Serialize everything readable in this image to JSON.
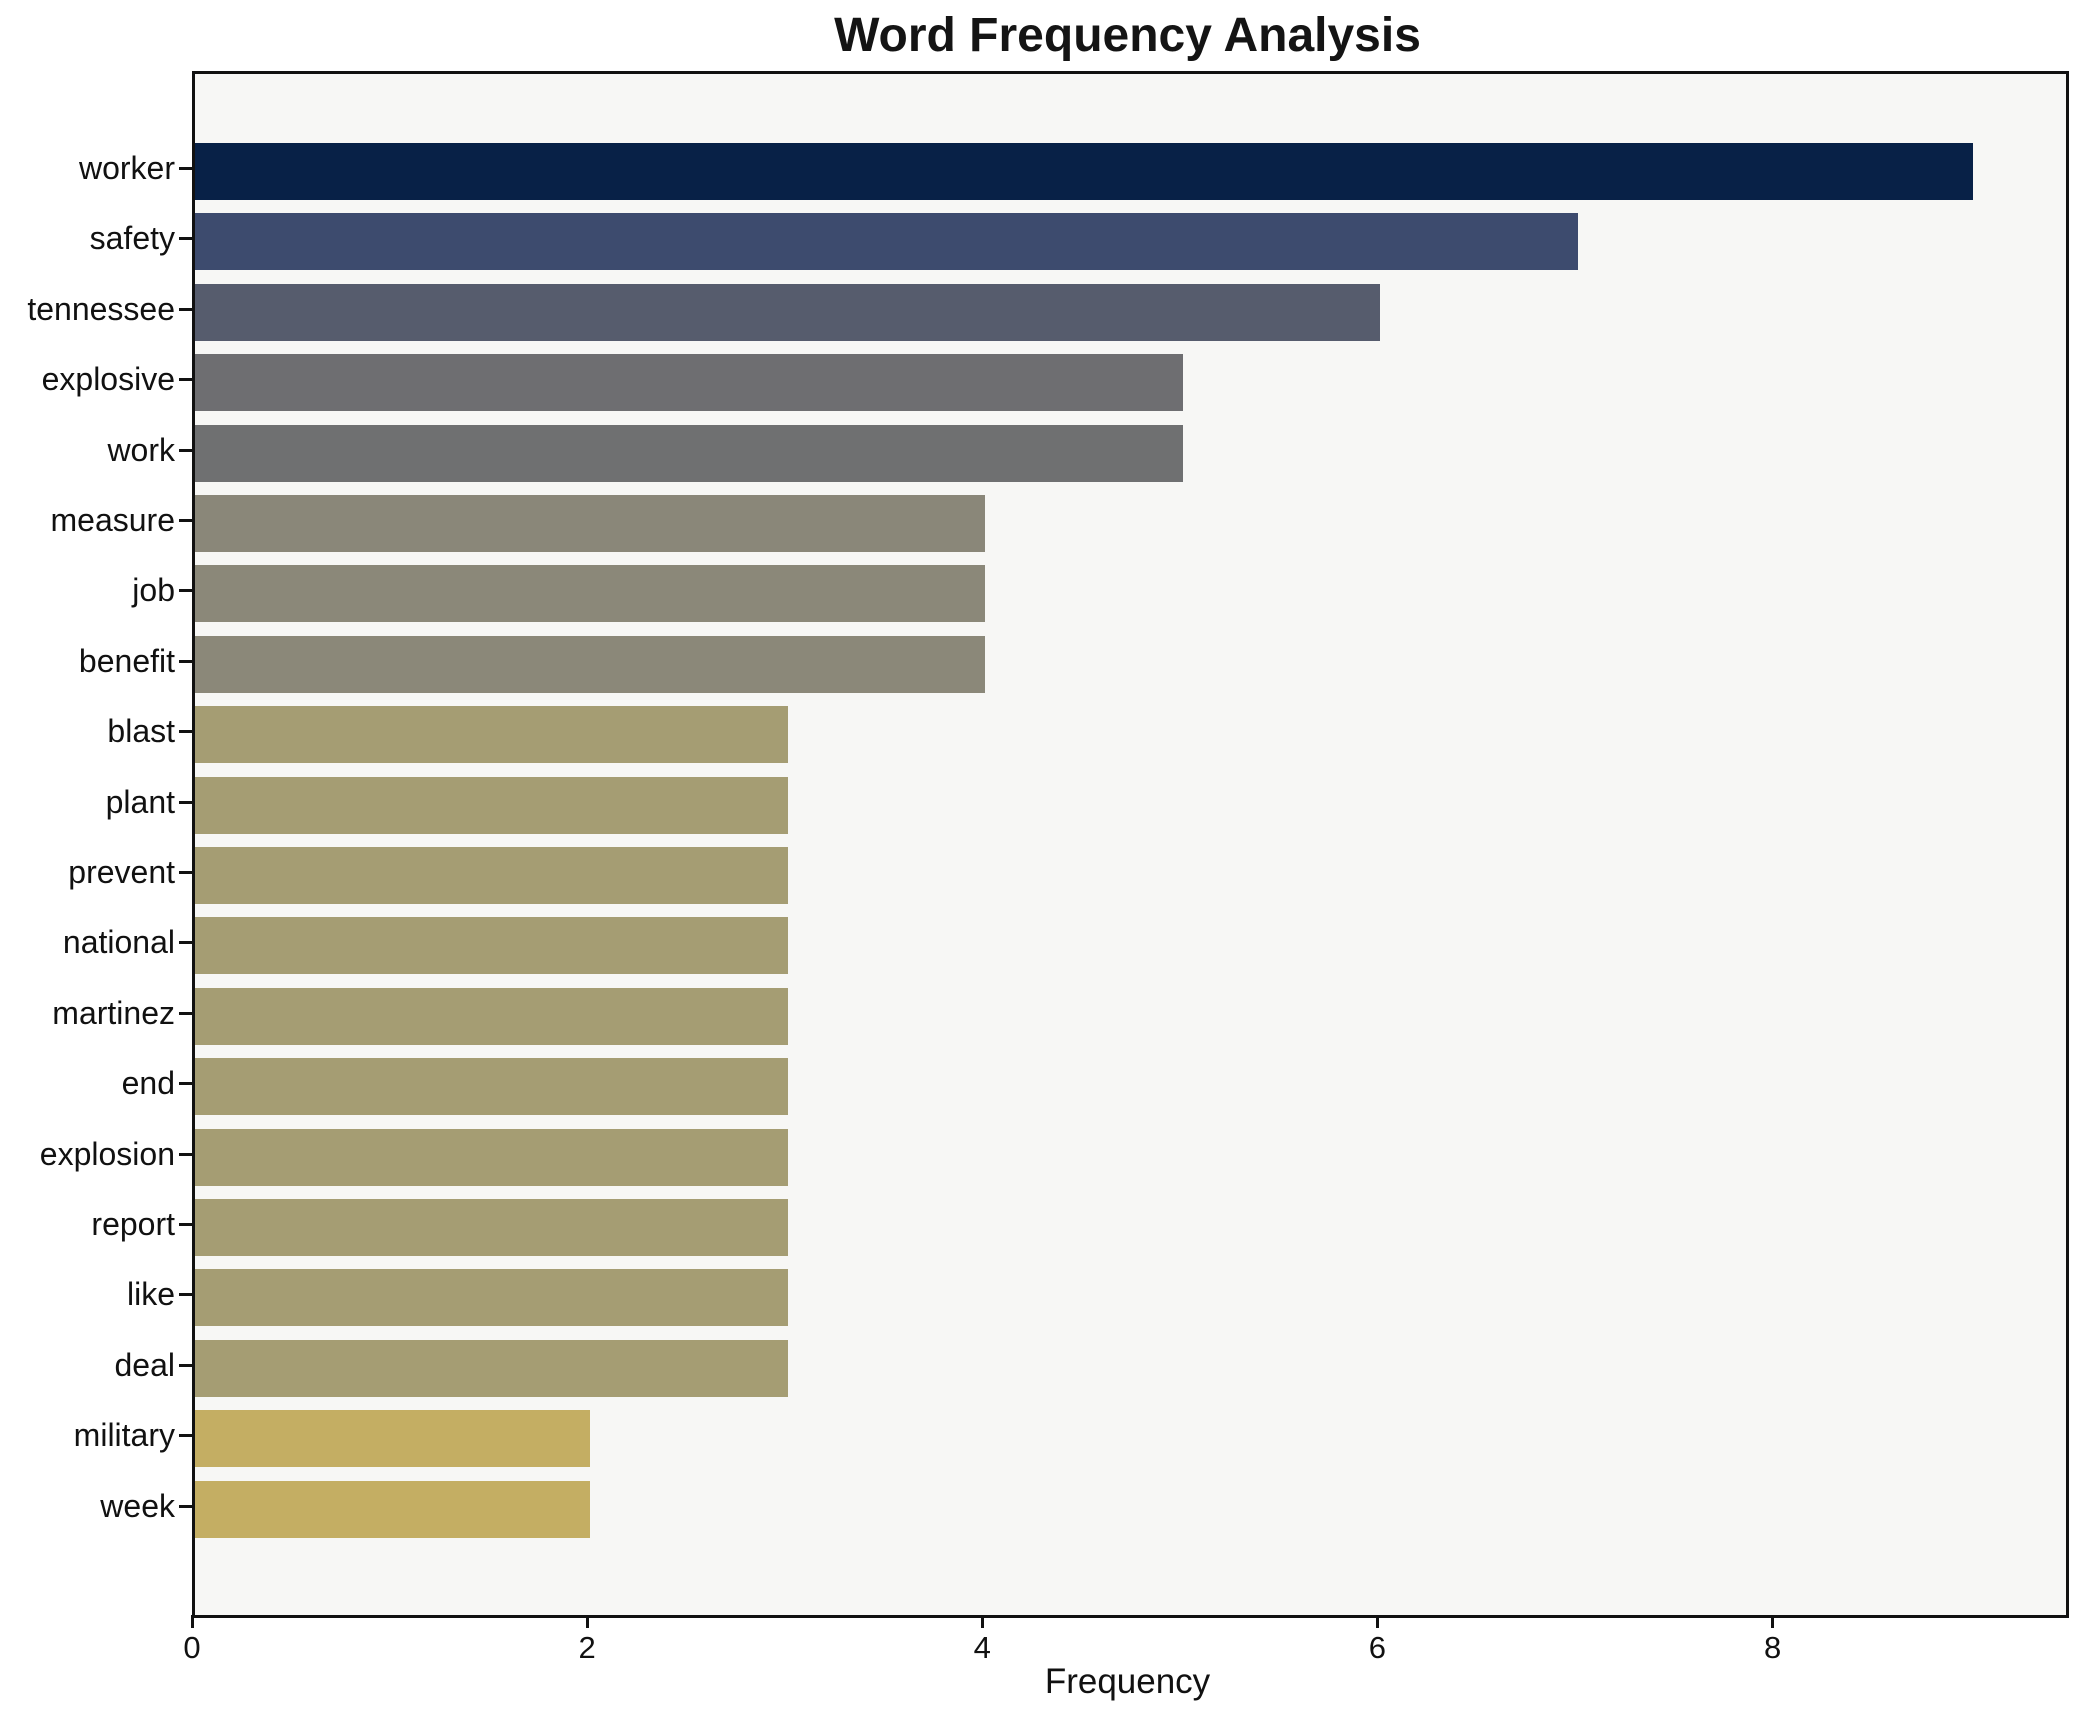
{
  "title": "Word Frequency Analysis",
  "chart_data": {
    "type": "bar",
    "orientation": "horizontal",
    "title": "Word Frequency Analysis",
    "xlabel": "Frequency",
    "ylabel": "",
    "categories": [
      "worker",
      "safety",
      "tennessee",
      "explosive",
      "work",
      "measure",
      "job",
      "benefit",
      "blast",
      "plant",
      "prevent",
      "national",
      "martinez",
      "end",
      "explosion",
      "report",
      "like",
      "deal",
      "military",
      "week"
    ],
    "values": [
      9,
      7,
      6,
      5,
      5,
      4,
      4,
      4,
      3,
      3,
      3,
      3,
      3,
      3,
      3,
      3,
      3,
      3,
      2,
      2
    ],
    "bar_colors": [
      "#082147",
      "#3d4b6e",
      "#565c6d",
      "#6e6e71",
      "#6f7071",
      "#8a8779",
      "#8b8879",
      "#8b8879",
      "#a59d73",
      "#a59d73",
      "#a59d73",
      "#a59d73",
      "#a59d73",
      "#a59d73",
      "#a59d73",
      "#a59d73",
      "#a59d73",
      "#a59d73",
      "#c4ae63",
      "#c4ae63"
    ],
    "xlim": [
      0,
      9.47
    ],
    "xticks": [
      0,
      2,
      4,
      6,
      8
    ],
    "grid": false,
    "legend": null,
    "plot_bg": "#f7f7f5",
    "frame_color": "#111111",
    "text_color": "#111111"
  }
}
